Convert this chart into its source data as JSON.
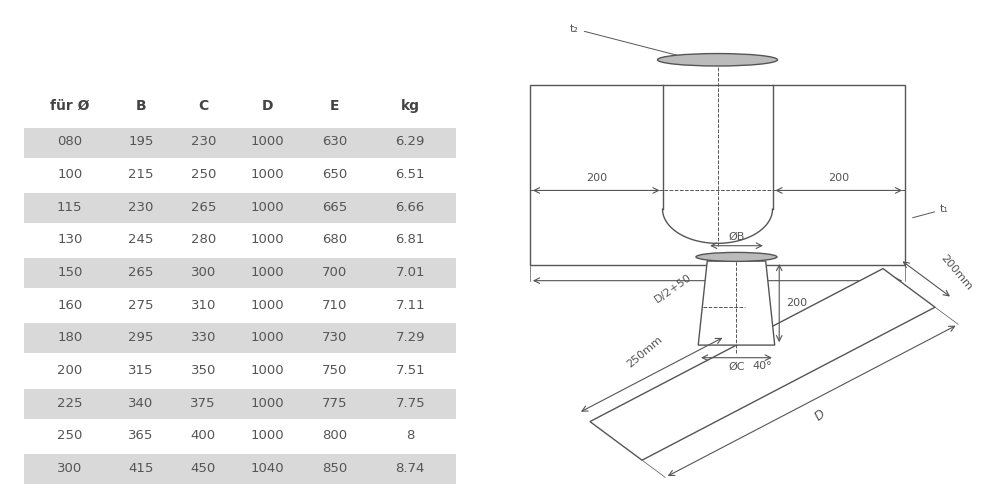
{
  "table_headers": [
    "für Ø",
    "B",
    "C",
    "D",
    "E",
    "kg"
  ],
  "table_rows": [
    [
      "080",
      "195",
      "230",
      "1000",
      "630",
      "6.29"
    ],
    [
      "100",
      "215",
      "250",
      "1000",
      "650",
      "6.51"
    ],
    [
      "115",
      "230",
      "265",
      "1000",
      "665",
      "6.66"
    ],
    [
      "130",
      "245",
      "280",
      "1000",
      "680",
      "6.81"
    ],
    [
      "150",
      "265",
      "300",
      "1000",
      "700",
      "7.01"
    ],
    [
      "160",
      "275",
      "310",
      "1000",
      "710",
      "7.11"
    ],
    [
      "180",
      "295",
      "330",
      "1000",
      "730",
      "7.29"
    ],
    [
      "200",
      "315",
      "350",
      "1000",
      "750",
      "7.51"
    ],
    [
      "225",
      "340",
      "375",
      "1000",
      "775",
      "7.75"
    ],
    [
      "250",
      "365",
      "400",
      "1000",
      "800",
      "8"
    ],
    [
      "300",
      "415",
      "450",
      "1040",
      "850",
      "8.74"
    ]
  ],
  "shaded_rows": [
    0,
    2,
    4,
    6,
    8,
    10
  ],
  "bg_color": "#ffffff",
  "row_shade": "#d9d9d9",
  "text_color": "#555555",
  "header_color": "#444444",
  "line_color": "#555555"
}
